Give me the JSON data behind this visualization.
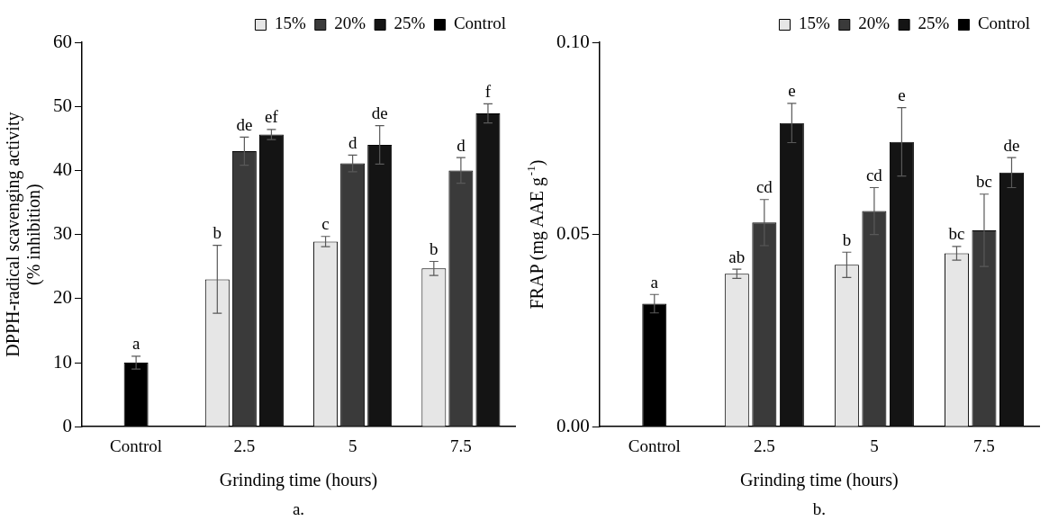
{
  "chart_data": [
    {
      "type": "bar",
      "categories": [
        "Control",
        "2.5",
        "5",
        "7.5"
      ],
      "xlabel": "Grinding time (hours)",
      "ylabel": "DPPH-radical scavenging activity\n(% inhibition)",
      "legend": "top right",
      "ylim": [
        0,
        60
      ],
      "yticks": [
        0,
        10,
        20,
        30,
        40,
        50,
        60
      ],
      "series": [
        {
          "name": "15%",
          "color": "#e6e6e6",
          "values": [
            null,
            23.0,
            28.9,
            24.7
          ],
          "errors": [
            null,
            5.3,
            0.8,
            1.1
          ],
          "value_labels": [
            null,
            "b",
            "c",
            "b"
          ]
        },
        {
          "name": "20%",
          "color": "#3a3a3a",
          "values": [
            null,
            43.0,
            41.1,
            40.0
          ],
          "errors": [
            null,
            2.2,
            1.3,
            2.0
          ],
          "value_labels": [
            null,
            "de",
            "d",
            "d"
          ]
        },
        {
          "name": "25%",
          "color": "#141414",
          "values": [
            null,
            45.6,
            44.0,
            48.9
          ],
          "errors": [
            null,
            0.8,
            3.0,
            1.5
          ],
          "value_labels": [
            null,
            "ef",
            "de",
            "f"
          ]
        },
        {
          "name": "Control",
          "color": "#000000",
          "values": [
            10.0,
            null,
            null,
            null
          ],
          "errors": [
            1.0,
            null,
            null,
            null
          ],
          "value_labels": [
            "a",
            null,
            null,
            null
          ]
        }
      ],
      "annotations": [
        "a."
      ]
    },
    {
      "type": "bar",
      "categories": [
        "Control",
        "2.5",
        "5",
        "7.5"
      ],
      "xlabel": "Grinding time (hours)",
      "ylabel": "FRAP (mg AAE g$^{-1}$)",
      "legend": "top right",
      "ylim": [
        0,
        0.1
      ],
      "yticks": [
        {
          "value": 0,
          "label": "0.00"
        },
        {
          "value": 0.05,
          "label": "0.05"
        },
        {
          "value": 0.1,
          "label": "0.10"
        }
      ],
      "series": [
        {
          "name": "15%",
          "color": "#e6e6e6",
          "values": [
            null,
            0.0398,
            0.0421,
            0.0451
          ],
          "errors": [
            null,
            0.0012,
            0.0033,
            0.0018
          ],
          "value_labels": [
            null,
            "ab",
            "b",
            "bc"
          ]
        },
        {
          "name": "20%",
          "color": "#3a3a3a",
          "values": [
            null,
            0.0531,
            0.0561,
            0.0511
          ],
          "errors": [
            null,
            0.006,
            0.0061,
            0.0094
          ],
          "value_labels": [
            null,
            "cd",
            "cd",
            "bc"
          ]
        },
        {
          "name": "25%",
          "color": "#141414",
          "values": [
            null,
            0.079,
            0.0741,
            0.0661
          ],
          "errors": [
            null,
            0.0051,
            0.0089,
            0.0039
          ],
          "value_labels": [
            null,
            "e",
            "e",
            "de"
          ]
        },
        {
          "name": "Control",
          "color": "#000000",
          "values": [
            0.032,
            null,
            null,
            null
          ],
          "errors": [
            0.0024,
            null,
            null,
            null
          ],
          "value_labels": [
            "a",
            null,
            null,
            null
          ]
        }
      ],
      "annotations": [
        "b."
      ]
    }
  ]
}
